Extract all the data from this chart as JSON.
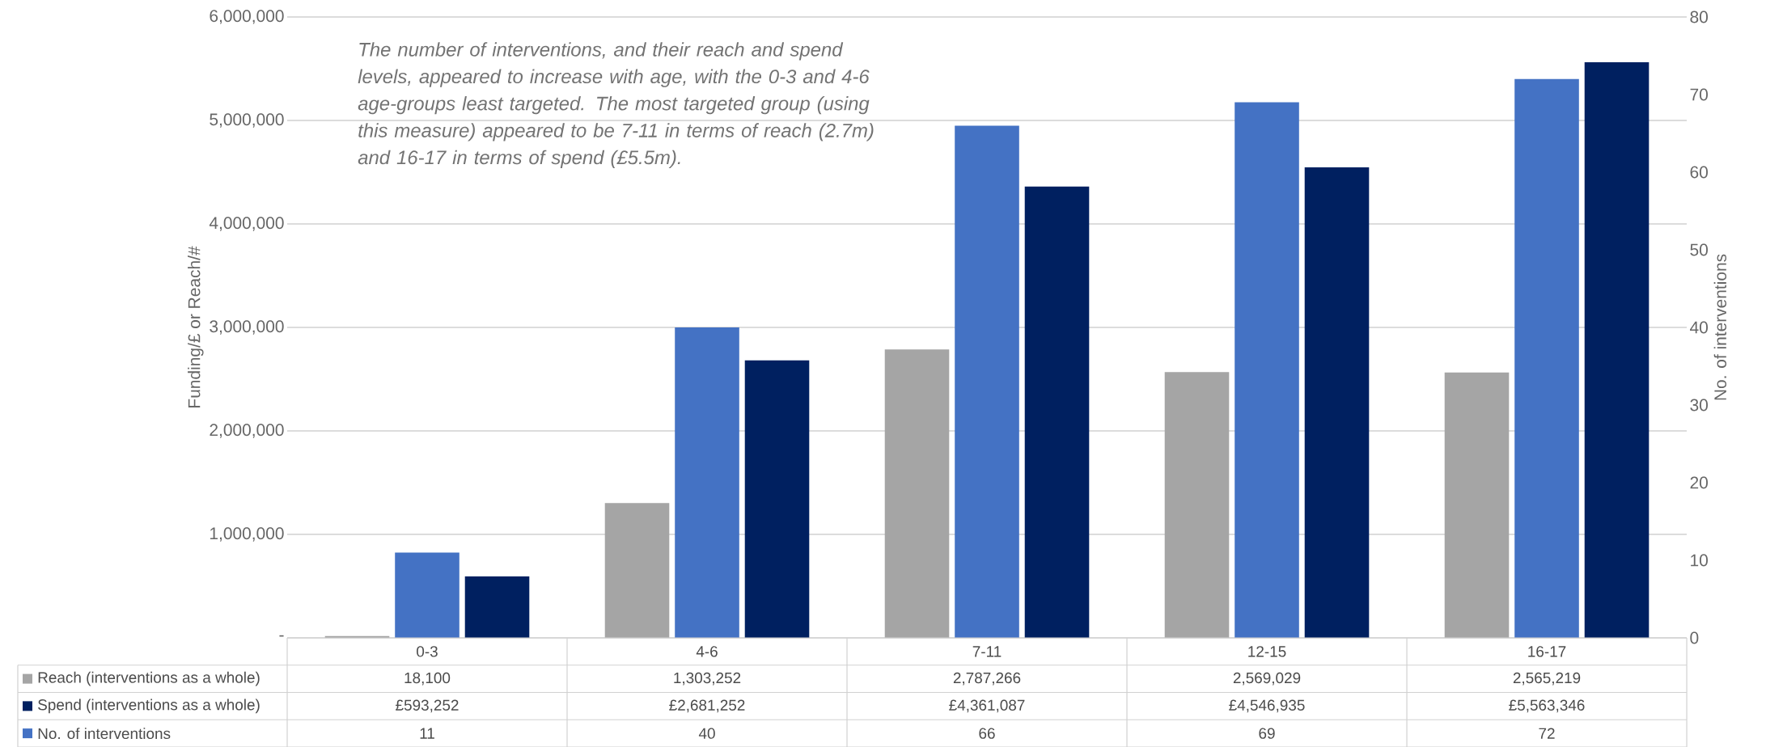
{
  "chart_data": {
    "type": "bar",
    "categories": [
      "0-3",
      "4-6",
      "7-11",
      "12-15",
      "16-17"
    ],
    "series": [
      {
        "name": "Reach (interventions as a whole)",
        "color": "#a5a5a5",
        "values": [
          18100,
          1303252,
          2787266,
          2569029,
          2565219
        ],
        "value_labels": [
          "18,100",
          "1,303,252",
          "2,787,266",
          "2,569,029",
          "2,565,219"
        ]
      },
      {
        "name": "No. of interventions",
        "color": "#4472c4",
        "axis": "y2",
        "values": [
          11,
          40,
          66,
          69,
          72
        ],
        "value_labels": [
          "11",
          "40",
          "66",
          "69",
          "72"
        ]
      },
      {
        "name": "Spend (interventions as a whole)",
        "color": "#002060",
        "values": [
          593252,
          2681252,
          4361087,
          4546935,
          5563346
        ],
        "value_labels": [
          "£593,252",
          "£2,681,252",
          "£4,361,087",
          "£4,546,935",
          "£5,563,346"
        ]
      }
    ],
    "ylabel": "Funding/£ or Reach/#",
    "y2label": "No. of interventions",
    "ylim": [
      0,
      6000000
    ],
    "yticks": [
      {
        "value": 0,
        "label": "-"
      },
      {
        "value": 1000000,
        "label": "1,000,000"
      },
      {
        "value": 2000000,
        "label": "2,000,000"
      },
      {
        "value": 3000000,
        "label": "3,000,000"
      },
      {
        "value": 4000000,
        "label": "4,000,000"
      },
      {
        "value": 5000000,
        "label": "5,000,000"
      },
      {
        "value": 6000000,
        "label": "6,000,000"
      }
    ],
    "y2lim": [
      0,
      80
    ],
    "y2ticks": [
      0,
      10,
      20,
      30,
      40,
      50,
      60,
      70,
      80
    ],
    "grid": "y",
    "legend": "bottom",
    "annotations": [
      "The number of interventions, and their reach and spend levels, appeared to increase with age, with the 0-3 and 4-6 age-groups least targeted. The most targeted group (using this measure) appeared to be 7-11 in terms of reach (2.7m) and 16-17 in terms of spend (£5.5m)."
    ]
  }
}
